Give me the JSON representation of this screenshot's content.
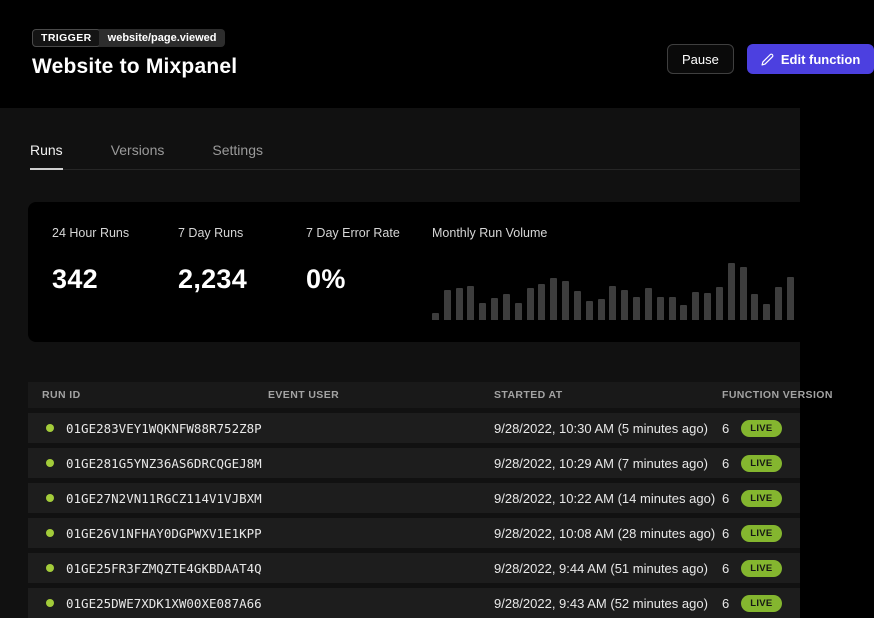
{
  "header": {
    "trigger_label": "TRIGGER",
    "trigger_event": "website/page.viewed",
    "title": "Website to Mixpanel",
    "pause_label": "Pause",
    "edit_label": "Edit function"
  },
  "tabs": [
    {
      "label": "Runs",
      "active": true
    },
    {
      "label": "Versions",
      "active": false
    },
    {
      "label": "Settings",
      "active": false
    }
  ],
  "stats": [
    {
      "label": "24 Hour Runs",
      "value": "342"
    },
    {
      "label": "7 Day Runs",
      "value": "2,234"
    },
    {
      "label": "7 Day Error Rate",
      "value": "0%"
    }
  ],
  "chart_data": {
    "type": "bar",
    "title": "Monthly Run Volume",
    "values": [
      12,
      53,
      56,
      60,
      30,
      39,
      46,
      30,
      56,
      63,
      74,
      68,
      51,
      33,
      37,
      60,
      53,
      40,
      56,
      40,
      40,
      26,
      49,
      47,
      58,
      100,
      93,
      46,
      28,
      58,
      75
    ],
    "ylabel": "",
    "xlabel": "",
    "axis_labels_visible": false,
    "bar_color": "#3d3d3d"
  },
  "table": {
    "columns": [
      "RUN ID",
      "EVENT USER",
      "STARTED AT",
      "FUNCTION VERSION"
    ],
    "rows": [
      {
        "run_id": "01GE283VEY1WQKNFW88R752Z8P",
        "event_user": "",
        "started_at": "9/28/2022, 10:30 AM (5 minutes ago)",
        "version": "6",
        "status": "LIVE"
      },
      {
        "run_id": "01GE281G5YNZ36AS6DRCQGEJ8M",
        "event_user": "",
        "started_at": "9/28/2022, 10:29 AM (7 minutes ago)",
        "version": "6",
        "status": "LIVE"
      },
      {
        "run_id": "01GE27N2VN11RGCZ114V1VJBXM",
        "event_user": "",
        "started_at": "9/28/2022, 10:22 AM (14 minutes ago)",
        "version": "6",
        "status": "LIVE"
      },
      {
        "run_id": "01GE26V1NFHAY0DGPWXV1E1KPP",
        "event_user": "",
        "started_at": "9/28/2022, 10:08 AM (28 minutes ago)",
        "version": "6",
        "status": "LIVE"
      },
      {
        "run_id": "01GE25FR3FZMQZTE4GKBDAAT4Q",
        "event_user": "",
        "started_at": "9/28/2022, 9:44 AM (51 minutes ago)",
        "version": "6",
        "status": "LIVE"
      },
      {
        "run_id": "01GE25DWE7XDK1XW00XE087A66",
        "event_user": "",
        "started_at": "9/28/2022, 9:43 AM (52 minutes ago)",
        "version": "6",
        "status": "LIVE"
      }
    ]
  },
  "colors": {
    "accent_purple": "#4c40e0",
    "live_green": "#84b62f",
    "status_dot_green": "#a3cc3a",
    "page_background": "#111111",
    "card_background": "#000000"
  }
}
